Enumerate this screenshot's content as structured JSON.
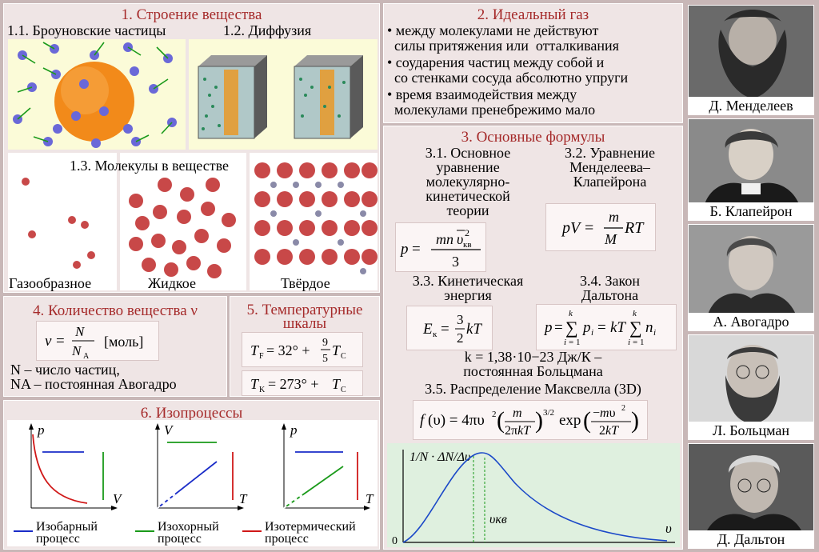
{
  "s1": {
    "title": "1. Строение вещества",
    "sub1": "1.1. Броуновские частицы",
    "sub2": "1.2. Диффузия",
    "sub3": "1.3. Молекулы в веществе",
    "states": [
      "Газообразное",
      "Жидкое",
      "Твёрдое"
    ]
  },
  "s2": {
    "title": "2. Идеальный газ",
    "lines": [
      "• между молекулами не действуют",
      "  силы притяжения или  отталкивания",
      "• соударения частиц между собой и",
      "  со стенками сосуда абсолютно упруги",
      "• время  взаимодействия между",
      "  молекулами пренебрежимо мало"
    ]
  },
  "s3": {
    "title": "3. Основные формулы",
    "f31_title": [
      "3.1. Основное",
      "уравнение",
      "молекулярно-",
      "кинетической",
      "теории"
    ],
    "f32_title": [
      "3.2. Уравнение",
      "Менделеева–",
      "Клапейрона"
    ],
    "f33_title": [
      "3.3. Кинетическая",
      "энергия"
    ],
    "f34_title": [
      "3.4. Закон",
      "Дальтона"
    ],
    "boltzmann": [
      "k = 1,38·10−23 Дж/К –",
      "постоянная Больцмана"
    ],
    "f35_title": "3.5. Распределение Максвелла (3D)",
    "maxwell_labels": {
      "y": "1/N · ΔN/Δυ",
      "x": "υ",
      "peak": "υкв",
      "origin": "0"
    }
  },
  "s4": {
    "title": "4. Количество вещества ν",
    "unit": "[моль]",
    "lines": [
      "N – число частиц,",
      "NA – постоянная Авогадро"
    ]
  },
  "s5": {
    "title": [
      "5. Температурные",
      "шкалы"
    ]
  },
  "s6": {
    "title": "6. Изопроцессы",
    "legend": [
      {
        "label": [
          "Изобарный",
          "процесс"
        ],
        "color": "#1a2cc8"
      },
      {
        "label": [
          "Изохорный",
          "процесс"
        ],
        "color": "#1a9a1a"
      },
      {
        "label": [
          "Изотермический",
          "процесс"
        ],
        "color": "#d01818"
      }
    ],
    "axes": [
      [
        "p",
        "V"
      ],
      [
        "V",
        "T"
      ],
      [
        "p",
        "T"
      ]
    ]
  },
  "portraits": [
    "Д. Менделеев",
    "Б. Клапейрон",
    "А. Авогадро",
    "Л. Больцман",
    "Д. Дальтон"
  ]
}
